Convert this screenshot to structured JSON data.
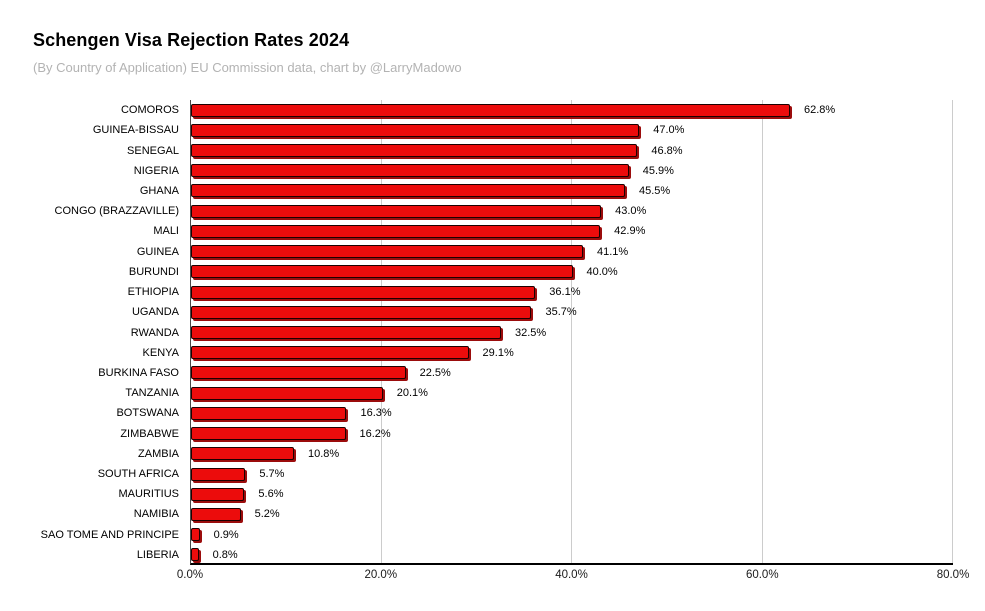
{
  "header": {
    "title": "Schengen Visa Rejection Rates 2024",
    "subtitle": "(By Country of Application) EU Commission data, chart by @LarryMadowo"
  },
  "chart_data": {
    "type": "bar",
    "orientation": "horizontal",
    "title": "Schengen Visa Rejection Rates 2024",
    "subtitle": "(By Country of Application) EU Commission data, chart by @LarryMadowo",
    "categories": [
      "COMOROS",
      "GUINEA-BISSAU",
      "SENEGAL",
      "NIGERIA",
      "GHANA",
      "CONGO (BRAZZAVILLE)",
      "MALI",
      "GUINEA",
      "BURUNDI",
      "ETHIOPIA",
      "UGANDA",
      "RWANDA",
      "KENYA",
      "BURKINA FASO",
      "TANZANIA",
      "BOTSWANA",
      "ZIMBABWE",
      "ZAMBIA",
      "SOUTH AFRICA",
      "MAURITIUS",
      "NAMIBIA",
      "SAO TOME AND PRINCIPE",
      "LIBERIA"
    ],
    "values": [
      62.8,
      47.0,
      46.8,
      45.9,
      45.5,
      43.0,
      42.9,
      41.1,
      40.0,
      36.1,
      35.7,
      32.5,
      29.1,
      22.5,
      20.1,
      16.3,
      16.2,
      10.8,
      5.7,
      5.6,
      5.2,
      0.9,
      0.8
    ],
    "value_labels": [
      "62.8%",
      "47.0%",
      "46.8%",
      "45.9%",
      "45.5%",
      "43.0%",
      "42.9%",
      "41.1%",
      "40.0%",
      "36.1%",
      "35.7%",
      "32.5%",
      "29.1%",
      "22.5%",
      "20.1%",
      "16.3%",
      "16.2%",
      "10.8%",
      "5.7%",
      "5.6%",
      "5.2%",
      "0.9%",
      "0.8%"
    ],
    "xlabel": "",
    "ylabel": "",
    "xlim": [
      0,
      80
    ],
    "x_ticks": [
      {
        "value": 0,
        "label": "0.0%"
      },
      {
        "value": 20,
        "label": "20.0%"
      },
      {
        "value": 40,
        "label": "40.0%"
      },
      {
        "value": 60,
        "label": "60.0%"
      },
      {
        "value": 80,
        "label": "80.0%"
      }
    ],
    "grid": "vertical-only",
    "legend": "none",
    "colors": {
      "bar_fill": "#ec0c0c",
      "bar_border": "#1c0000",
      "bar_shadow": "#9b0c0c",
      "gridline": "#cccccc",
      "axis": "#000000",
      "subtitle_text": "#b3b3b3",
      "background": "#ffffff"
    }
  }
}
